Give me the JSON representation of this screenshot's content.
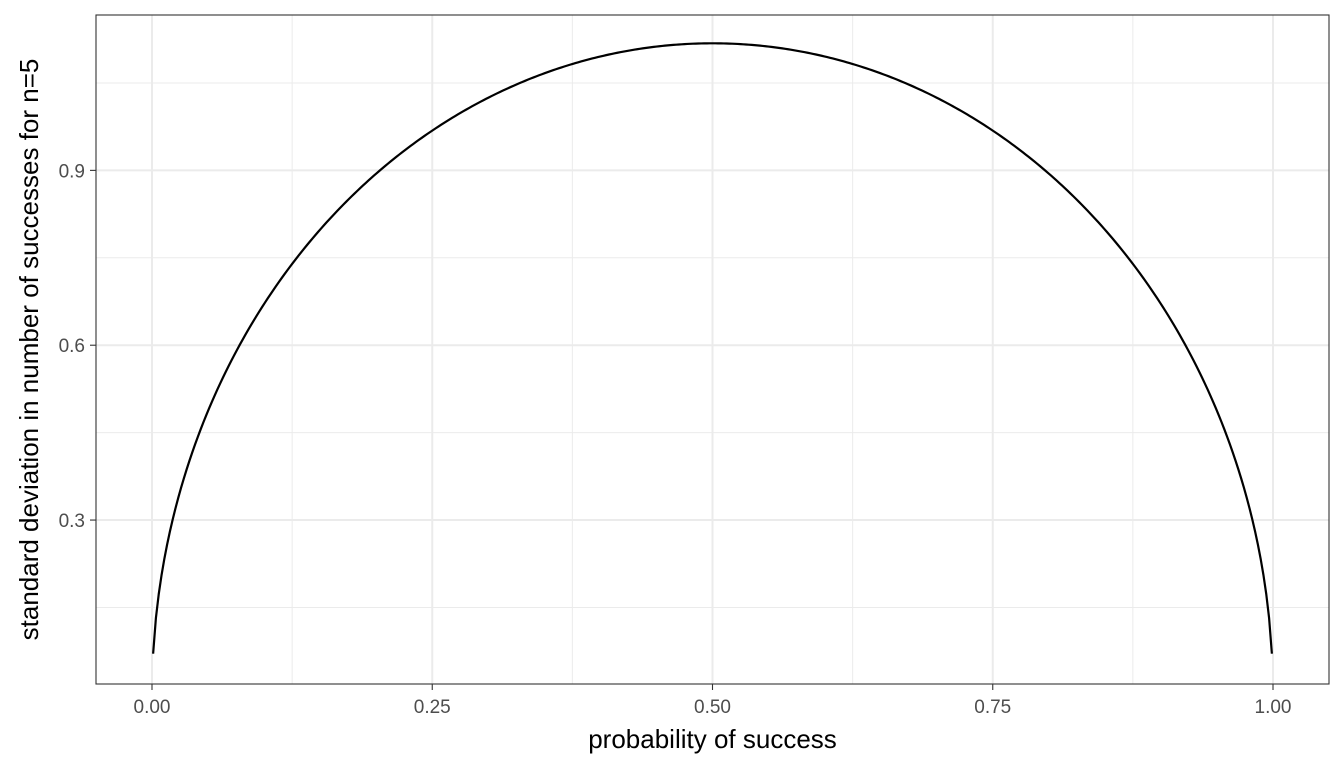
{
  "chart_data": {
    "type": "line",
    "title": "",
    "xlabel": "probability of success",
    "ylabel": "standard deviation in number of successes for n=5",
    "n": 5,
    "x_range": [
      0.001,
      0.999
    ],
    "xlim": [
      -0.04995,
      1.04995
    ],
    "ylim": [
      0.0187,
      1.1666
    ],
    "x_ticks": [
      0.0,
      0.25,
      0.5,
      0.75,
      1.0
    ],
    "x_tick_labels": [
      "0.00",
      "0.25",
      "0.50",
      "0.75",
      "1.00"
    ],
    "x_minor_ticks": [
      0.125,
      0.375,
      0.625,
      0.875
    ],
    "y_ticks": [
      0.3,
      0.6,
      0.9
    ],
    "y_tick_labels": [
      "0.3",
      "0.6",
      "0.9"
    ],
    "y_minor_ticks": [
      0.15,
      0.45,
      0.75,
      1.05
    ],
    "grid": true,
    "legend": "none",
    "series": [
      {
        "x": [
          0.001,
          0.005,
          0.01,
          0.025,
          0.05,
          0.075,
          0.1,
          0.15,
          0.2,
          0.25,
          0.3,
          0.35,
          0.4,
          0.45,
          0.5,
          0.55,
          0.6,
          0.65,
          0.7,
          0.75,
          0.8,
          0.85,
          0.9,
          0.925,
          0.95,
          0.975,
          0.99,
          0.995,
          0.999
        ],
        "y": [
          0.0707,
          0.1576,
          0.2225,
          0.3491,
          0.4873,
          0.589,
          0.6708,
          0.7984,
          0.8944,
          0.9682,
          1.0247,
          1.0665,
          1.0954,
          1.1124,
          1.118,
          1.1124,
          1.0954,
          1.0665,
          1.0247,
          0.9682,
          0.8944,
          0.7984,
          0.6708,
          0.589,
          0.4873,
          0.3491,
          0.2225,
          0.1576,
          0.0707
        ],
        "color": "#000000"
      }
    ]
  },
  "colors": {
    "background": "#ffffff",
    "panel_border": "#333333",
    "grid_major": "#ebebeb",
    "grid_minor": "#ebebeb",
    "tick_label": "#4d4d4d",
    "axis_title": "#000000"
  }
}
